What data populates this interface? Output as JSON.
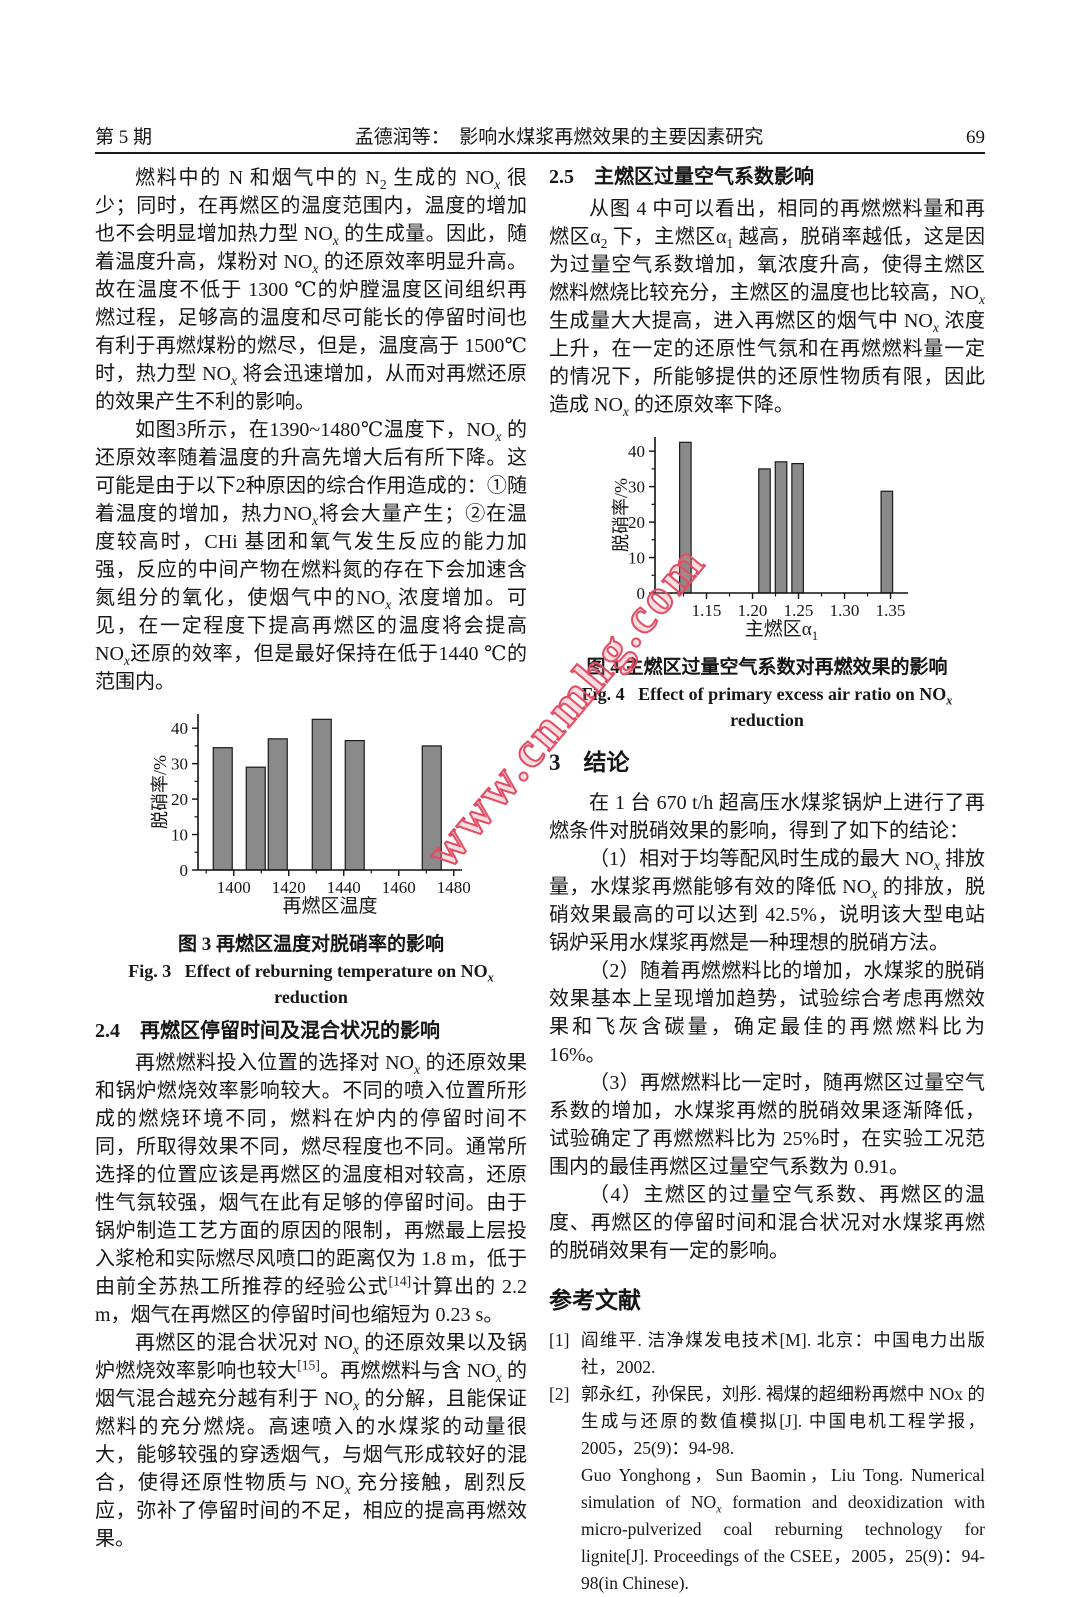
{
  "header": {
    "issue": "第 5 期",
    "title": "孟德润等：&nbsp;&nbsp;影响水煤浆再燃效果的主要因素研究",
    "page_number": "69"
  },
  "watermark": {
    "text": "www.cnmhg.com",
    "color": "#e24d64"
  },
  "left_column": {
    "para1": "燃料中的 N 和烟气中的 N<sub>2</sub> 生成的 NO<sub><i>x</i></sub> 很少；同时，在再燃区的温度范围内，温度的增加也不会明显增加热力型 NO<sub><i>x</i></sub> 的生成量。因此，随着温度升高，煤粉对 NO<sub><i>x</i></sub> 的还原效率明显升高。故在温度不低于 1300 ℃的炉膛温度区间组织再燃过程，足够高的温度和尽可能长的停留时间也有利于再燃煤粉的燃尽，但是，温度高于 1500℃时，热力型 NO<sub><i>x</i></sub> 将会迅速增加，从而对再燃还原的效果产生不利的影响。",
    "para2": "如图3所示，在1390~1480℃温度下，NO<sub><i>x</i></sub> 的还原效率随着温度的升高先增大后有所下降。这可能是由于以下2种原因的综合作用造成的：①随着温度的增加，热力NO<sub><i>x</i></sub>将会大量产生；②在温度较高时，CHi 基团和氧气发生反应的能力加强，反应的中间产物在燃料氮的存在下会加速含氮组分的氧化，使烟气中的NO<sub><i>x</i></sub> 浓度增加。可见，在一定程度下提高再燃区的温度将会提高NO<sub><i>x</i></sub>还原的效率，但是最好保持在低于1440 ℃的范围内。",
    "fig3_caption_zh": "图 3 再燃区温度对脱硝率的影响",
    "fig3_caption_en": "Fig. 3&nbsp;&nbsp;&nbsp;Effect of reburning temperature on NO<sub><i>x</i></sub> reduction",
    "sec24_heading": "2.4　再燃区停留时间及混合状况的影响",
    "para3": "再燃燃料投入位置的选择对 NO<sub><i>x</i></sub> 的还原效果和锅炉燃烧效率影响较大。不同的喷入位置所形成的燃烧环境不同，燃料在炉内的停留时间不同，所取得效果不同，燃尽程度也不同。通常所选择的位置应该是再燃区的温度相对较高，还原性气氛较强，烟气在此有足够的停留时间。由于锅炉制造工艺方面的原因的限制，再燃最上层投入浆枪和实际燃尽风喷口的距离仅为 1.8 m，低于由前全苏热工所推荐的经验公式<sup>[14]</sup>计算出的 2.2 m，烟气在再燃区的停留时间也缩短为 0.23 s。",
    "para4": "再燃区的混合状况对 NO<sub><i>x</i></sub> 的还原效果以及锅炉燃烧效率影响也较大<sup>[15]</sup>。再燃燃料与含 NO<sub><i>x</i></sub> 的烟气混合越充分越有利于 NO<sub><i>x</i></sub> 的分解，且能保证燃料的充分燃烧。高速喷入的水煤浆的动量很大，能够较强的穿透烟气，与烟气形成较好的混合，使得还原性物质与 NO<sub><i>x</i></sub> 充分接触，剧烈反应，弥补了停留时间的不足，相应的提高再燃效果。"
  },
  "right_column": {
    "sec25_heading": "2.5　主燃区过量空气系数影响",
    "para1": "从图 4 中可以看出，相同的再燃燃料量和再燃区α<sub>2</sub> 下，主燃区α<sub>1</sub> 越高，脱硝率越低，这是因为过量空气系数增加，氧浓度升高，使得主燃区燃料燃烧比较充分，主燃区的温度也比较高，NO<sub><i>x</i></sub> 生成量大大提高，进入再燃区的烟气中 NO<sub><i>x</i></sub> 浓度上升，在一定的还原性气氛和在再燃燃料量一定的情况下，所能够提供的还原性物质有限，因此造成 NO<sub><i>x</i></sub> 的还原效率下降。",
    "fig4_caption_zh": "图 4 主燃区过量空气系数对再燃效果的影响",
    "fig4_caption_en": "Fig. 4&nbsp;&nbsp;&nbsp;Effect of primary excess air ratio on NO<sub><i>x</i></sub> reduction",
    "sec3_heading": "3　结论",
    "conc_intro": "在 1 台 670 t/h 超高压水煤浆锅炉上进行了再燃条件对脱硝效果的影响，得到了如下的结论：",
    "conc1": "（1）相对于均等配风时生成的最大 NO<sub><i>x</i></sub> 排放量，水煤浆再燃能够有效的降低 NO<sub><i>x</i></sub> 的排放，脱硝效果最高的可以达到 42.5%，说明该大型电站锅炉采用水煤浆再燃是一种理想的脱硝方法。",
    "conc2": "（2）随着再燃燃料比的增加，水煤浆的脱硝效果基本上呈现增加趋势，试验综合考虑再燃效果和飞灰含碳量，确定最佳的再燃燃料比为 16%。",
    "conc3": "（3）再燃燃料比一定时，随再燃区过量空气系数的增加，水煤浆再燃的脱硝效果逐渐降低，试验确定了再燃燃料比为 25%时，在实验工况范围内的最佳再燃区过量空气系数为 0.91。",
    "conc4": "（4）主燃区的过量空气系数、再燃区的温度、再燃区的停留时间和混合状况对水煤浆再燃的脱硝效果有一定的影响。",
    "refs_heading": "参考文献",
    "references": [
      {
        "num": "[1]",
        "html": "阎维平. 洁净煤发电技术[M]. 北京：中国电力出版社，2002."
      },
      {
        "num": "[2]",
        "html": "郭永红，孙保民，刘彤. 褐煤的超细粉再燃中 NOx 的生成与还原的数值模拟[J]. 中国电机工程学报，2005，25(9)：94-98."
      },
      {
        "num": "",
        "html": "Guo Yonghong，Sun Baomin，Liu Tong. Numerical simulation of NO<sub><i>x</i></sub> formation and deoxidization with micro-pulverized coal reburning technology for lignite[J]. Proceedings of the CSEE，2005，25(9)：94-98(in Chinese)."
      }
    ]
  },
  "chart_data": [
    {
      "type": "bar",
      "title": "图 3 再燃区温度对脱硝率的影响",
      "xlabel": "再燃区温度",
      "ylabel": "脱硝率/%",
      "x": [
        1396,
        1408,
        1416,
        1432,
        1444,
        1472
      ],
      "values": [
        34.5,
        29,
        37,
        42.5,
        36.5,
        35
      ],
      "bar_width": 6.9,
      "xlim": [
        1387,
        1483
      ],
      "ylim": [
        0,
        44
      ],
      "xticks": [
        1400,
        1420,
        1440,
        1460,
        1480
      ],
      "xtick_labels": [
        "1400",
        "1420",
        "1440",
        "1460",
        "1480"
      ],
      "xminors": [
        1390,
        1410,
        1430,
        1450,
        1470
      ],
      "yticks": [
        0,
        10,
        20,
        30,
        40
      ],
      "yminors": [
        5,
        15,
        25,
        35
      ],
      "grid": false,
      "legend": "none",
      "bar_fill": "#8a8a8a",
      "bar_stroke": "#1a1a1a"
    },
    {
      "type": "bar",
      "title": "图 4 主燃区过量空气系数对再燃效果的影响",
      "xlabel": "主燃区α<sub>1</sub>",
      "ylabel": "脱硝率/%",
      "x": [
        1.127,
        1.213,
        1.231,
        1.249,
        1.346
      ],
      "values": [
        42.5,
        35,
        37,
        36.5,
        28.7
      ],
      "bar_width": 0.0125,
      "xlim": [
        1.094,
        1.369
      ],
      "ylim": [
        0,
        44
      ],
      "xticks": [
        1.15,
        1.2,
        1.25,
        1.3,
        1.35
      ],
      "xtick_labels": [
        "1.15",
        "1.20",
        "1.25",
        "1.30",
        "1.35"
      ],
      "xminors": [
        1.125,
        1.175,
        1.225,
        1.275,
        1.325
      ],
      "yticks": [
        0,
        10,
        20,
        30,
        40
      ],
      "yminors": [
        5,
        15,
        25,
        35
      ],
      "grid": false,
      "legend": "none",
      "bar_fill": "#8a8a8a",
      "bar_stroke": "#1a1a1a"
    }
  ]
}
